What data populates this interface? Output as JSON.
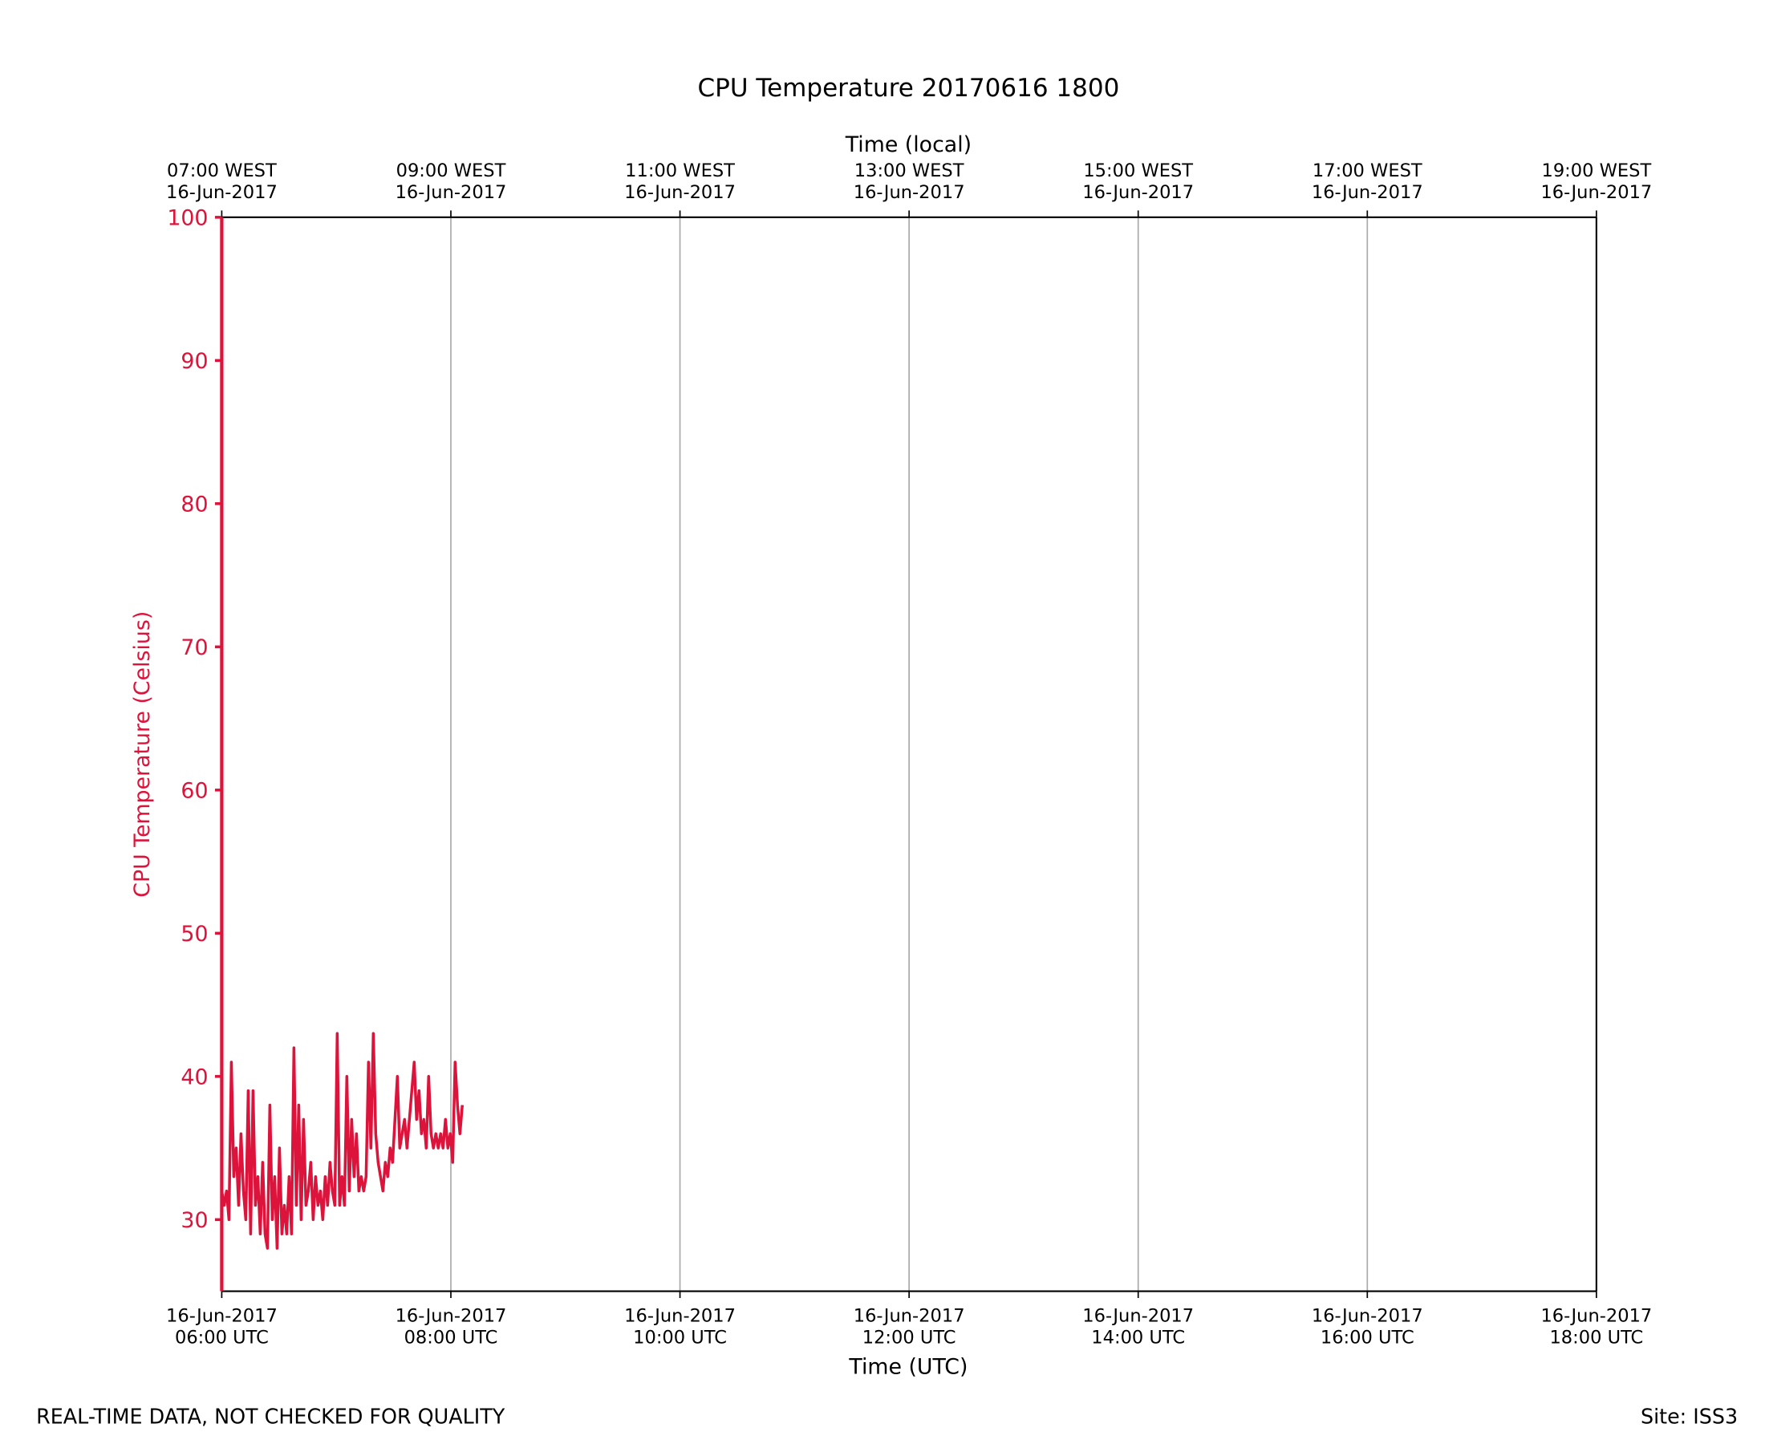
{
  "chart_data": {
    "type": "line",
    "title": "CPU Temperature 20170616 1800",
    "xlabel": "Time (UTC)",
    "x2label": "Time (local)",
    "ylabel": "CPU Temperature (Celsius)",
    "annotations": [
      "REAL-TIME DATA, NOT CHECKED FOR QUALITY",
      "Site: ISS3"
    ],
    "xlim": [
      6,
      18
    ],
    "ylim": [
      25,
      100
    ],
    "yticks": [
      30,
      40,
      50,
      60,
      70,
      80,
      90,
      100
    ],
    "xticks": [
      {
        "value": 6,
        "label": [
          "16-Jun-2017",
          "06:00 UTC"
        ]
      },
      {
        "value": 8,
        "label": [
          "16-Jun-2017",
          "08:00 UTC"
        ]
      },
      {
        "value": 10,
        "label": [
          "16-Jun-2017",
          "10:00 UTC"
        ]
      },
      {
        "value": 12,
        "label": [
          "16-Jun-2017",
          "12:00 UTC"
        ]
      },
      {
        "value": 14,
        "label": [
          "16-Jun-2017",
          "14:00 UTC"
        ]
      },
      {
        "value": 16,
        "label": [
          "16-Jun-2017",
          "16:00 UTC"
        ]
      },
      {
        "value": 18,
        "label": [
          "16-Jun-2017",
          "18:00 UTC"
        ]
      }
    ],
    "x2ticks": [
      {
        "value": 6,
        "label": [
          "07:00 WEST",
          "16-Jun-2017"
        ]
      },
      {
        "value": 8,
        "label": [
          "09:00 WEST",
          "16-Jun-2017"
        ]
      },
      {
        "value": 10,
        "label": [
          "11:00 WEST",
          "16-Jun-2017"
        ]
      },
      {
        "value": 12,
        "label": [
          "13:00 WEST",
          "16-Jun-2017"
        ]
      },
      {
        "value": 14,
        "label": [
          "15:00 WEST",
          "16-Jun-2017"
        ]
      },
      {
        "value": 16,
        "label": [
          "17:00 WEST",
          "16-Jun-2017"
        ]
      },
      {
        "value": 18,
        "label": [
          "19:00 WEST",
          "16-Jun-2017"
        ]
      }
    ],
    "grid": "x",
    "axis_color": "#dc143c",
    "grid_color": "#aaaaaa",
    "x": [
      6,
      6.021,
      6.042,
      6.063,
      6.084,
      6.105,
      6.126,
      6.147,
      6.168,
      6.189,
      6.21,
      6.231,
      6.252,
      6.273,
      6.294,
      6.315,
      6.336,
      6.357,
      6.378,
      6.399,
      6.42,
      6.441,
      6.462,
      6.483,
      6.504,
      6.525,
      6.546,
      6.567,
      6.588,
      6.609,
      6.63,
      6.651,
      6.672,
      6.693,
      6.714,
      6.735,
      6.756,
      6.777,
      6.798,
      6.819,
      6.84,
      6.861,
      6.882,
      6.903,
      6.924,
      6.945,
      6.966,
      6.987,
      7.008,
      7.029,
      7.05,
      7.071,
      7.092,
      7.113,
      7.134,
      7.155,
      7.176,
      7.197,
      7.218,
      7.239,
      7.26,
      7.281,
      7.302,
      7.323,
      7.344,
      7.365,
      7.386,
      7.407,
      7.428,
      7.449,
      7.47,
      7.491,
      7.512,
      7.533,
      7.554,
      7.575,
      7.596,
      7.617,
      7.638,
      7.659,
      7.68,
      7.701,
      7.722,
      7.743,
      7.764,
      7.785,
      7.806,
      7.827,
      7.848,
      7.869,
      7.89,
      7.911,
      7.932,
      7.953,
      7.974,
      7.995,
      8.016,
      8.037,
      8.058,
      8.079,
      8.1
    ],
    "series": [
      {
        "name": "CPU Temperature",
        "color": "#dc143c",
        "values": [
          32,
          31,
          32,
          30,
          41,
          33,
          35,
          31,
          36,
          32,
          30,
          39,
          29,
          39,
          31,
          33,
          29,
          34,
          29,
          28,
          38,
          30,
          33,
          28,
          35,
          29,
          31,
          29,
          33,
          29,
          42,
          31,
          38,
          30,
          37,
          31,
          32,
          34,
          30,
          33,
          31,
          32,
          30,
          33,
          31,
          34,
          32,
          31,
          43,
          31,
          33,
          31,
          40,
          32,
          37,
          33,
          36,
          32,
          33,
          32,
          33,
          41,
          35,
          43,
          36,
          34,
          33,
          32,
          34,
          33,
          35,
          34,
          37,
          40,
          35,
          36,
          37,
          35,
          37,
          39,
          41,
          37,
          39,
          36,
          37,
          35,
          40,
          36,
          35,
          36,
          35,
          36,
          35,
          37,
          35,
          36,
          34,
          41,
          38,
          36,
          38
        ]
      }
    ]
  }
}
